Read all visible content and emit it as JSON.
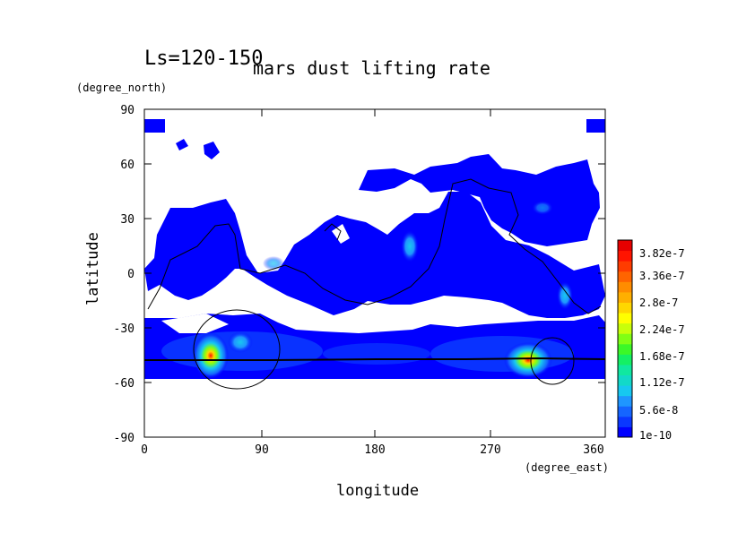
{
  "chart_data": {
    "type": "heatmap",
    "title": "mars dust lifting rate",
    "subtitle": "Ls=120-150",
    "xlabel": "longitude",
    "ylabel": "latitude",
    "xunit": "(degree_east)",
    "yunit": "(degree_north)",
    "xlim": [
      0,
      360
    ],
    "ylim": [
      -90,
      90
    ],
    "xticks": [
      "0",
      "90",
      "180",
      "270",
      "360"
    ],
    "yticks": [
      "90",
      "60",
      "30",
      "0",
      "-30",
      "-60",
      "-90"
    ],
    "colorbar": {
      "labels": [
        "1e-10",
        "5.6e-8",
        "1.12e-7",
        "1.68e-7",
        "2.24e-7",
        "2.8e-7",
        "3.36e-7",
        "3.82e-7"
      ],
      "colors": [
        "#0000ff",
        "#0a37ff",
        "#1565ff",
        "#1f96ff",
        "#17c8f0",
        "#12d9c8",
        "#10e8a0",
        "#14f064",
        "#3cf828",
        "#80ff14",
        "#c8ff0a",
        "#ffff00",
        "#ffd700",
        "#ffaf00",
        "#ff8c00",
        "#ff6400",
        "#ff3c00",
        "#ff1400",
        "#e60000"
      ]
    },
    "hotspots": [
      {
        "lon": 50,
        "lat": -46,
        "value": 3.82e-07
      },
      {
        "lon": 302,
        "lat": -48,
        "value": 3.82e-07
      },
      {
        "lon": 205,
        "lat": 14,
        "value": 1.2e-07
      },
      {
        "lon": 328,
        "lat": -14,
        "value": 1e-07
      }
    ],
    "grid": false
  }
}
